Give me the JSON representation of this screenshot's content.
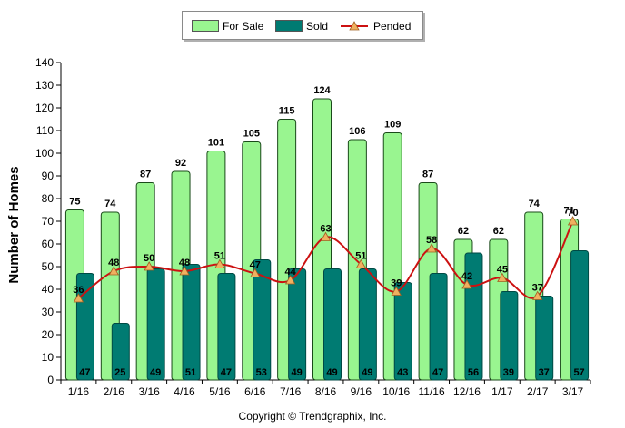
{
  "chart_data": {
    "type": "bar",
    "categories": [
      "1/16",
      "2/16",
      "3/16",
      "4/16",
      "5/16",
      "6/16",
      "7/16",
      "8/16",
      "9/16",
      "10/16",
      "11/16",
      "12/16",
      "1/17",
      "2/17",
      "3/17"
    ],
    "series": [
      {
        "name": "For Sale",
        "type": "bar",
        "color": "#99f590",
        "values": [
          75,
          74,
          87,
          92,
          101,
          105,
          115,
          124,
          106,
          109,
          87,
          62,
          62,
          74,
          71
        ]
      },
      {
        "name": "Sold",
        "type": "bar",
        "color": "#007b72",
        "values": [
          47,
          25,
          49,
          51,
          47,
          53,
          49,
          49,
          49,
          43,
          47,
          56,
          39,
          37,
          57
        ]
      },
      {
        "name": "Pended",
        "type": "line",
        "color": "#cc1111",
        "marker_color": "#f0b060",
        "values": [
          36,
          48,
          50,
          48,
          51,
          47,
          44,
          63,
          51,
          39,
          58,
          42,
          45,
          37,
          70
        ]
      }
    ],
    "ylabel": "Number of Homes",
    "xlabel": "",
    "ylim": [
      0,
      140
    ],
    "yticks": [
      0,
      10,
      20,
      30,
      40,
      50,
      60,
      70,
      80,
      90,
      100,
      110,
      120,
      130,
      140
    ],
    "grid": false,
    "legend": "top-center"
  },
  "copyright": "Copyright © Trendgraphix, Inc."
}
